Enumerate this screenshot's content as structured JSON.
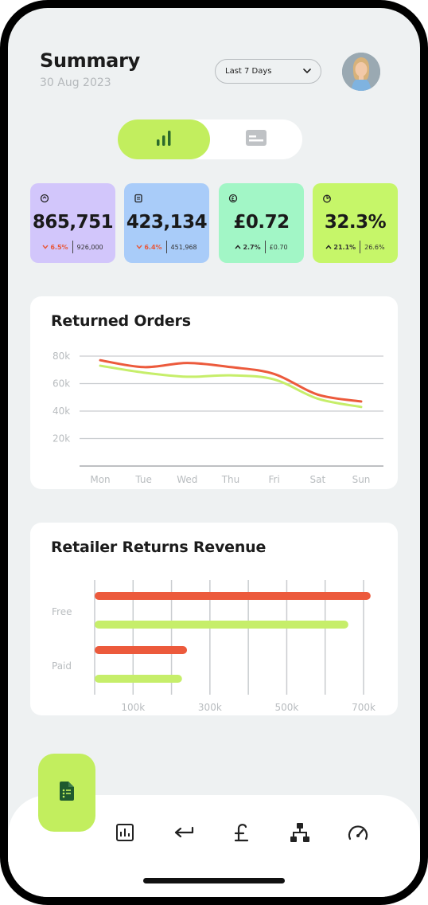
{
  "header": {
    "title": "Summary",
    "date": "30 Aug 2023",
    "range_select": {
      "selected": "Last 7 Days"
    }
  },
  "view_toggle": {
    "options": [
      {
        "icon": "bar-chart-icon",
        "active": true
      },
      {
        "icon": "card-icon",
        "active": false
      }
    ]
  },
  "metrics": [
    {
      "icon": "returns-icon",
      "value": "865,751",
      "delta": "6.5%",
      "direction": "down",
      "previous": "926,000",
      "color": "#d2c6fb"
    },
    {
      "icon": "orders-icon",
      "value": "423,134",
      "delta": "6.4%",
      "direction": "down",
      "previous": "451,968",
      "color": "#a9ccf9"
    },
    {
      "icon": "currency-icon",
      "value": "£0.72",
      "delta": "2.7%",
      "direction": "up",
      "previous": "£0.70",
      "color": "#a2f6c6"
    },
    {
      "icon": "pie-icon",
      "value": "32.3%",
      "delta": "21.1%",
      "direction": "up",
      "previous": "26.6%",
      "color": "#c6f669"
    }
  ],
  "returned_orders": {
    "title": "Returned Orders",
    "chart_data": {
      "type": "line",
      "title": "Returned Orders",
      "categories": [
        "Mon",
        "Tue",
        "Wed",
        "Thu",
        "Fri",
        "Sat",
        "Sun"
      ],
      "y_ticks": [
        "80k",
        "60k",
        "40k",
        "20k"
      ],
      "ylim": [
        0,
        80000
      ],
      "grid": true,
      "series": [
        {
          "color": "#ec5a3c",
          "values": [
            77000,
            72000,
            75000,
            72000,
            67000,
            52000,
            47000
          ]
        },
        {
          "color": "#c6ee6a",
          "values": [
            73000,
            68000,
            65000,
            66000,
            63000,
            49000,
            43000
          ]
        }
      ]
    }
  },
  "retailer_revenue": {
    "title": "Retailer Returns Revenue",
    "chart_data": {
      "type": "bar",
      "orientation": "horizontal",
      "title": "Retailer Returns Revenue",
      "categories": [
        "Free",
        "Paid"
      ],
      "x_ticks": [
        "100k",
        "300k",
        "500k",
        "700k"
      ],
      "xlim": [
        0,
        700000
      ],
      "grid": true,
      "series": [
        {
          "color": "#ec5a3c",
          "values": [
            708000,
            230000
          ]
        },
        {
          "color": "#c6ee6a",
          "values": [
            650000,
            217000
          ]
        }
      ]
    }
  },
  "nav": {
    "fab_icon": "document-icon",
    "items": [
      "analytics-icon",
      "return-arrow-icon",
      "pound-icon",
      "hierarchy-icon",
      "speedometer-icon"
    ]
  },
  "colors": {
    "accent": "#c2ee5e",
    "red": "#ec5a3c",
    "lime": "#c6ee6a",
    "background": "#eef1f2"
  }
}
